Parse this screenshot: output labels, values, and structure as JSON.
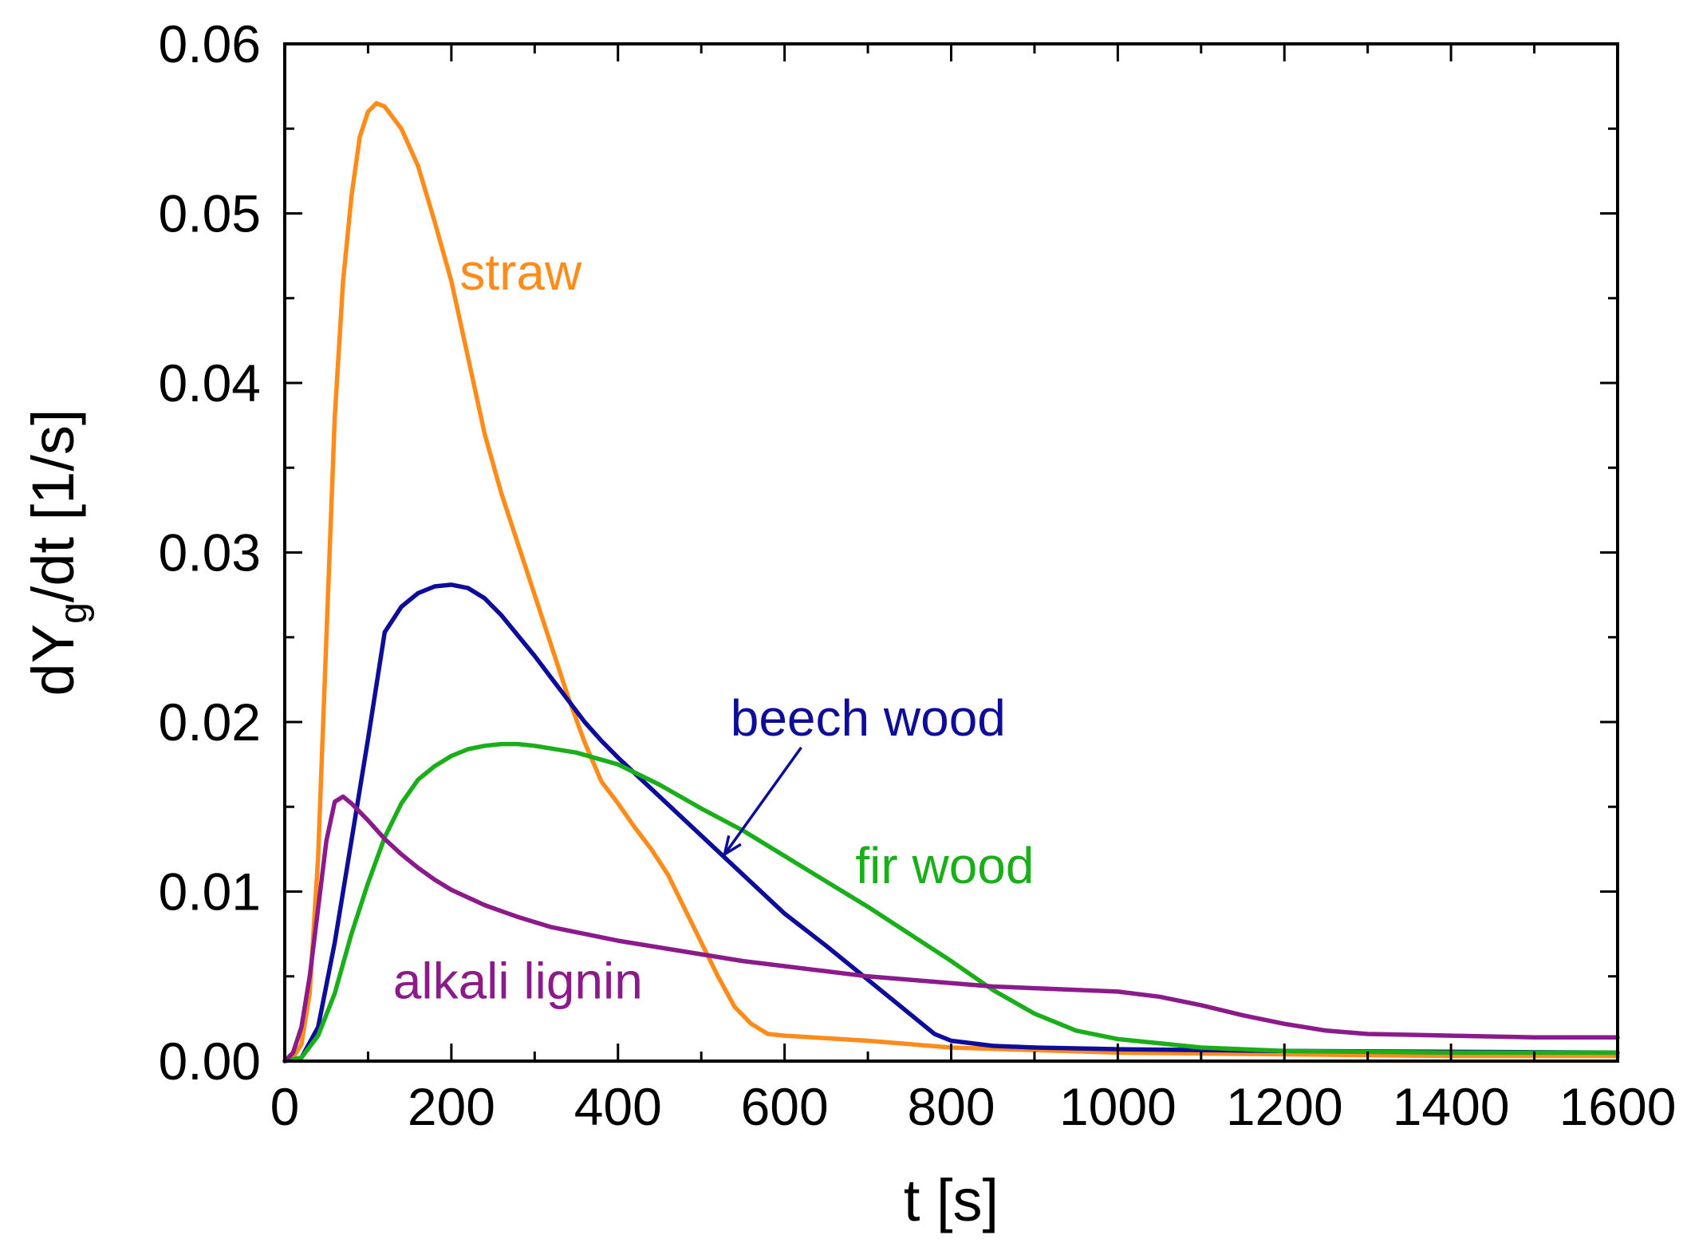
{
  "chart_data": {
    "type": "line",
    "title": "",
    "xlabel": "t [s]",
    "ylabel": {
      "prefix": "dY",
      "subscript": "g",
      "suffix": "/dt [1/s]"
    },
    "xlim": [
      0,
      1600
    ],
    "ylim": [
      0,
      0.06
    ],
    "xticks": [
      0,
      200,
      400,
      600,
      800,
      1000,
      1200,
      1400,
      1600
    ],
    "xtick_labels": [
      "0",
      "200",
      "400",
      "600",
      "800",
      "1000",
      "1200",
      "1400",
      "1600"
    ],
    "yticks": [
      0,
      0.01,
      0.02,
      0.03,
      0.04,
      0.05,
      0.06
    ],
    "ytick_labels": [
      "0.00",
      "0.01",
      "0.02",
      "0.03",
      "0.04",
      "0.05",
      "0.06"
    ],
    "grid": false,
    "series": [
      {
        "name": "straw",
        "color": "#ff8c1a",
        "label_anchor": [
          210,
          0.0455
        ],
        "points": [
          [
            0,
            0
          ],
          [
            10,
            0.0002
          ],
          [
            20,
            0.001
          ],
          [
            30,
            0.004
          ],
          [
            40,
            0.012
          ],
          [
            50,
            0.025
          ],
          [
            60,
            0.038
          ],
          [
            70,
            0.046
          ],
          [
            80,
            0.051
          ],
          [
            90,
            0.0545
          ],
          [
            100,
            0.056
          ],
          [
            110,
            0.0565
          ],
          [
            120,
            0.0563
          ],
          [
            140,
            0.055
          ],
          [
            160,
            0.0528
          ],
          [
            180,
            0.0495
          ],
          [
            200,
            0.046
          ],
          [
            220,
            0.0415
          ],
          [
            240,
            0.037
          ],
          [
            260,
            0.0335
          ],
          [
            280,
            0.0305
          ],
          [
            300,
            0.0275
          ],
          [
            320,
            0.0245
          ],
          [
            340,
            0.0215
          ],
          [
            360,
            0.0188
          ],
          [
            380,
            0.0165
          ],
          [
            400,
            0.0152
          ],
          [
            420,
            0.0138
          ],
          [
            440,
            0.0125
          ],
          [
            460,
            0.011
          ],
          [
            480,
            0.009
          ],
          [
            500,
            0.007
          ],
          [
            520,
            0.005
          ],
          [
            540,
            0.0032
          ],
          [
            560,
            0.0022
          ],
          [
            580,
            0.0016
          ],
          [
            600,
            0.0015
          ],
          [
            700,
            0.0012
          ],
          [
            800,
            0.0008
          ],
          [
            1000,
            0.0005
          ],
          [
            1200,
            0.0004
          ],
          [
            1400,
            0.0003
          ],
          [
            1600,
            0.0003
          ]
        ]
      },
      {
        "name": "beech wood",
        "color": "#0d0d99",
        "label_anchor": [
          535,
          0.0192
        ],
        "points": [
          [
            0,
            0
          ],
          [
            20,
            0.0002
          ],
          [
            40,
            0.002
          ],
          [
            60,
            0.007
          ],
          [
            80,
            0.013
          ],
          [
            100,
            0.019
          ],
          [
            120,
            0.0253
          ],
          [
            140,
            0.0268
          ],
          [
            160,
            0.0276
          ],
          [
            180,
            0.028
          ],
          [
            200,
            0.0281
          ],
          [
            220,
            0.0279
          ],
          [
            240,
            0.0273
          ],
          [
            260,
            0.0263
          ],
          [
            280,
            0.0251
          ],
          [
            300,
            0.0239
          ],
          [
            320,
            0.0226
          ],
          [
            340,
            0.0213
          ],
          [
            360,
            0.02
          ],
          [
            380,
            0.0189
          ],
          [
            400,
            0.0179
          ],
          [
            450,
            0.0156
          ],
          [
            500,
            0.0133
          ],
          [
            550,
            0.011
          ],
          [
            600,
            0.0087
          ],
          [
            650,
            0.0068
          ],
          [
            700,
            0.0048
          ],
          [
            750,
            0.0028
          ],
          [
            780,
            0.0016
          ],
          [
            800,
            0.0012
          ],
          [
            850,
            0.0009
          ],
          [
            900,
            0.0008
          ],
          [
            1000,
            0.0007
          ],
          [
            1200,
            0.0006
          ],
          [
            1600,
            0.0005
          ]
        ]
      },
      {
        "name": "fir wood",
        "color": "#1aaf1a",
        "label_anchor": [
          685,
          0.0105
        ],
        "points": [
          [
            0,
            0
          ],
          [
            20,
            0.0002
          ],
          [
            40,
            0.0015
          ],
          [
            60,
            0.004
          ],
          [
            80,
            0.0075
          ],
          [
            100,
            0.0105
          ],
          [
            120,
            0.0132
          ],
          [
            140,
            0.0152
          ],
          [
            160,
            0.0166
          ],
          [
            180,
            0.0174
          ],
          [
            200,
            0.018
          ],
          [
            220,
            0.0184
          ],
          [
            240,
            0.0186
          ],
          [
            260,
            0.0187
          ],
          [
            280,
            0.0187
          ],
          [
            300,
            0.0186
          ],
          [
            350,
            0.0182
          ],
          [
            400,
            0.0175
          ],
          [
            450,
            0.0163
          ],
          [
            500,
            0.0149
          ],
          [
            550,
            0.0136
          ],
          [
            600,
            0.0121
          ],
          [
            650,
            0.0106
          ],
          [
            700,
            0.0091
          ],
          [
            750,
            0.0075
          ],
          [
            800,
            0.0059
          ],
          [
            850,
            0.0042
          ],
          [
            900,
            0.0028
          ],
          [
            950,
            0.0018
          ],
          [
            1000,
            0.0013
          ],
          [
            1100,
            0.0008
          ],
          [
            1200,
            0.0006
          ],
          [
            1400,
            0.0005
          ],
          [
            1600,
            0.0005
          ]
        ]
      },
      {
        "name": "alkali lignin",
        "color": "#8b1a8b",
        "label_anchor": [
          130,
          0.0037
        ],
        "points": [
          [
            0,
            0
          ],
          [
            10,
            0.0005
          ],
          [
            20,
            0.002
          ],
          [
            30,
            0.005
          ],
          [
            40,
            0.009
          ],
          [
            50,
            0.013
          ],
          [
            60,
            0.0153
          ],
          [
            70,
            0.0156
          ],
          [
            80,
            0.0152
          ],
          [
            100,
            0.0142
          ],
          [
            120,
            0.0131
          ],
          [
            140,
            0.0122
          ],
          [
            160,
            0.0114
          ],
          [
            180,
            0.0107
          ],
          [
            200,
            0.0101
          ],
          [
            240,
            0.0092
          ],
          [
            280,
            0.0085
          ],
          [
            320,
            0.0079
          ],
          [
            360,
            0.0075
          ],
          [
            400,
            0.0071
          ],
          [
            450,
            0.0067
          ],
          [
            500,
            0.0063
          ],
          [
            550,
            0.0059
          ],
          [
            600,
            0.0056
          ],
          [
            650,
            0.0053
          ],
          [
            700,
            0.005
          ],
          [
            750,
            0.0048
          ],
          [
            800,
            0.0046
          ],
          [
            850,
            0.0044
          ],
          [
            900,
            0.0043
          ],
          [
            950,
            0.0042
          ],
          [
            1000,
            0.0041
          ],
          [
            1050,
            0.0038
          ],
          [
            1100,
            0.0033
          ],
          [
            1150,
            0.0027
          ],
          [
            1200,
            0.0022
          ],
          [
            1250,
            0.0018
          ],
          [
            1300,
            0.0016
          ],
          [
            1400,
            0.0015
          ],
          [
            1500,
            0.0014
          ],
          [
            1600,
            0.0014
          ]
        ]
      }
    ],
    "annotations": [
      {
        "text": "beech wood",
        "arrow_from": [
          620,
          0.0185
        ],
        "arrow_to": [
          528,
          0.0122
        ]
      }
    ]
  }
}
